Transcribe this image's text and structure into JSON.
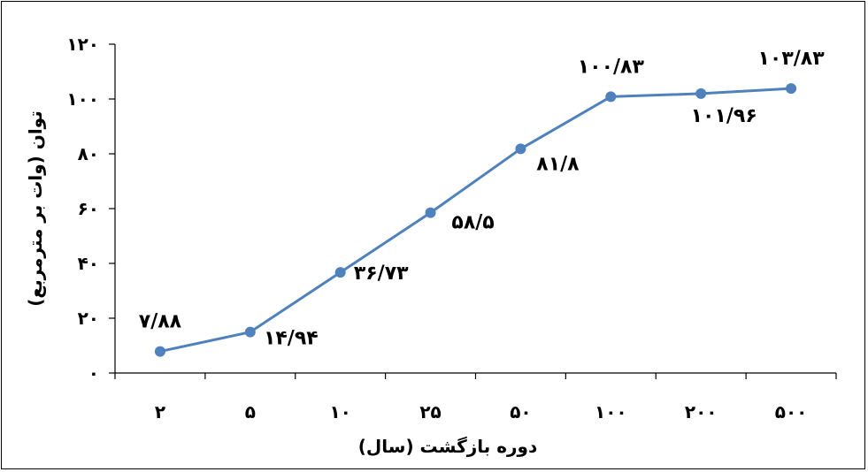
{
  "chart_data": {
    "type": "line",
    "xlabel": "دوره بازگشت (سال)",
    "ylabel": "توان (وات بر مترمربع)",
    "categories": [
      "۲",
      "۵",
      "۱۰",
      "۲۵",
      "۵۰",
      "۱۰۰",
      "۲۰۰",
      "۵۰۰"
    ],
    "series": [
      {
        "values": [
          7.88,
          14.94,
          36.73,
          58.5,
          81.8,
          100.83,
          101.96,
          103.83
        ],
        "labels": [
          "۷/۸۸",
          "۱۴/۹۴",
          "۳۶/۷۳",
          "۵۸/۵",
          "۸۱/۸",
          "۱۰۰/۸۳",
          "۱۰۱/۹۶",
          "۱۰۳/۸۳"
        ]
      }
    ],
    "ylim": [
      0,
      120
    ],
    "yticks": [
      0,
      20,
      40,
      60,
      80,
      100,
      120
    ],
    "ytick_labels": [
      "۰",
      "۲۰",
      "۴۰",
      "۶۰",
      "۸۰",
      "۱۰۰",
      "۱۲۰"
    ],
    "grid": false,
    "legend": "none",
    "line_color": "#4F81BD"
  }
}
